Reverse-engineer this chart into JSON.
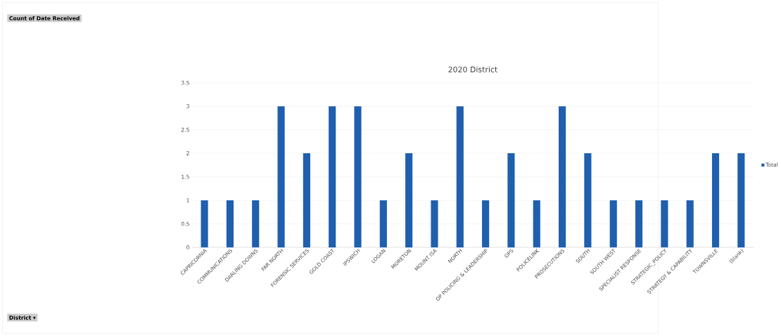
{
  "chart_data": {
    "type": "bar",
    "title": "2020 District",
    "categories": [
      "CAPRICORNIA",
      "COMMUNICATIONS",
      "DARLING DOWNS",
      "FAR NORTH",
      "FORENSIC SERVICES",
      "GOLD COAST",
      "IPSWICH",
      "LOGAN",
      "MORETON",
      "MOUNT ISA",
      "NORTH",
      "OP POLICING & LEADERSHIP",
      "OPS",
      "POLICELINK",
      "PROSECUTIONS",
      "SOUTH",
      "SOUTH WEST",
      "SPECIALIST RESPONSE",
      "STRATEGIC_POLICY",
      "STRATEGY & CAPABILITY",
      "TOWNSVILLE",
      "(blank)"
    ],
    "series": [
      {
        "name": "Total",
        "color": "#1f5fae",
        "values": [
          1,
          1,
          1,
          3,
          2,
          3,
          3,
          1,
          2,
          1,
          3,
          1,
          2,
          1,
          3,
          2,
          1,
          1,
          1,
          1,
          2,
          2
        ]
      }
    ],
    "ylim": [
      0,
      3.5
    ],
    "yticks": [
      0,
      0.5,
      1,
      1.5,
      2,
      2.5,
      3,
      3.5
    ],
    "grid": "y",
    "legend": "right",
    "annotations": [
      "Count of Date Received",
      "District ▾"
    ]
  }
}
